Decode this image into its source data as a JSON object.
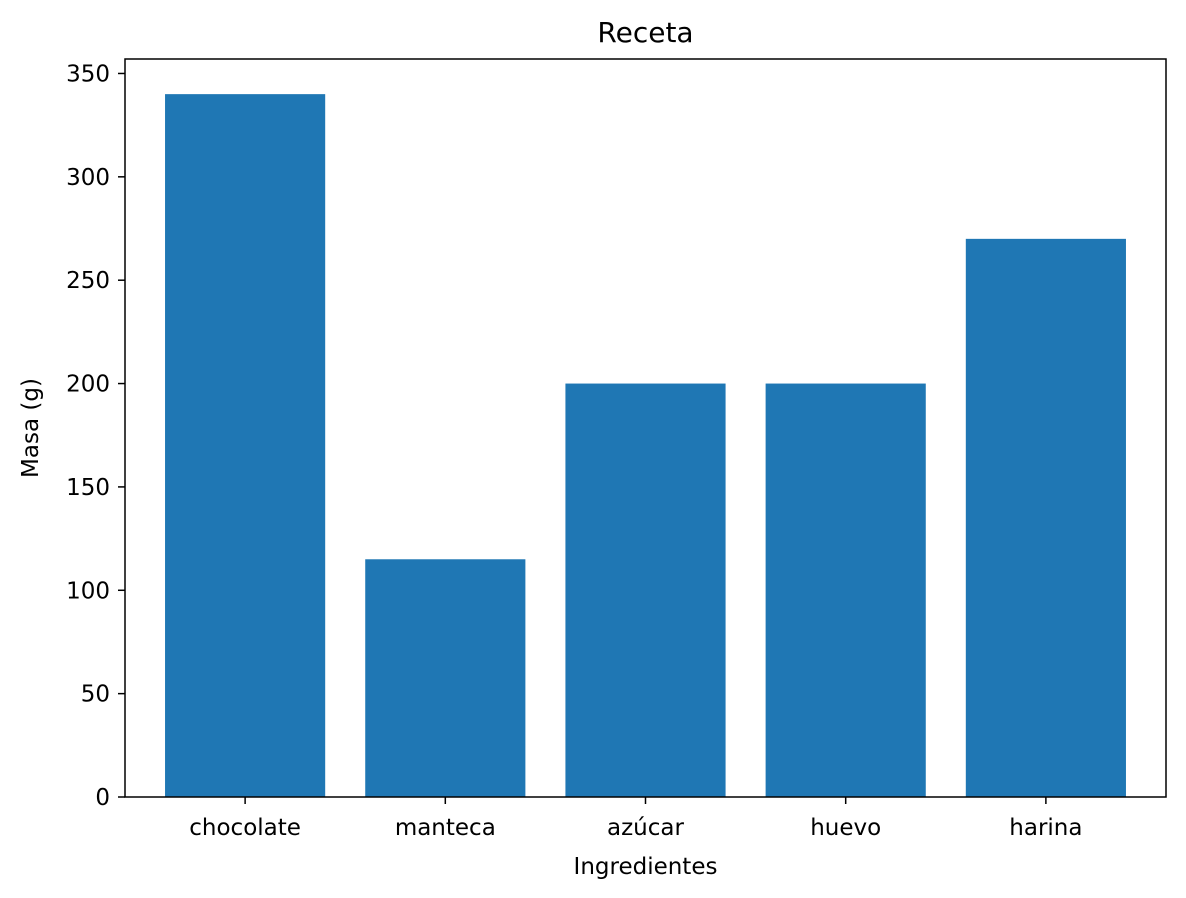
{
  "chart_data": {
    "type": "bar",
    "title": "Receta",
    "xlabel": "Ingredientes",
    "ylabel": "Masa (g)",
    "categories": [
      "chocolate",
      "manteca",
      "azúcar",
      "huevo",
      "harina"
    ],
    "values": [
      340,
      115,
      200,
      200,
      270
    ],
    "ylim": [
      0,
      357
    ],
    "yticks": [
      "0",
      "50",
      "100",
      "150",
      "200",
      "250",
      "300",
      "350"
    ],
    "bar_color": "#1f77b4",
    "grid": false,
    "legend": "none"
  }
}
